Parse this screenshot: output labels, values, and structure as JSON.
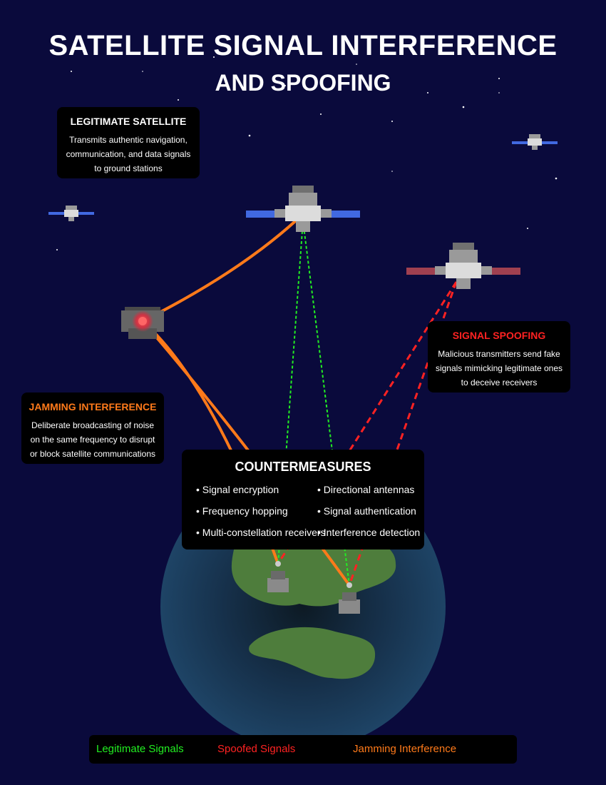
{
  "title": {
    "line1": "SATELLITE SIGNAL INTERFERENCE",
    "line2": "AND SPOOFING"
  },
  "boxes": {
    "legitimate": {
      "title": "LEGITIMATE SATELLITE",
      "lines": [
        "Transmits authentic navigation,",
        "communication, and data signals",
        "to ground stations"
      ]
    },
    "spoofing": {
      "title": "SIGNAL SPOOFING",
      "lines": [
        "Malicious transmitters send fake",
        "signals mimicking legitimate ones",
        "to deceive receivers"
      ]
    },
    "jamming": {
      "title": "JAMMING INTERFERENCE",
      "lines": [
        "Deliberate broadcasting of noise",
        "on the same frequency to disrupt",
        "or block satellite communications"
      ]
    }
  },
  "countermeasures": {
    "title": "COUNTERMEASURES",
    "items": [
      "• Signal encryption",
      "• Directional antennas",
      "• Frequency hopping",
      "• Signal authentication",
      "• Multi-constellation receivers",
      "• Interference detection"
    ]
  },
  "legend": {
    "legitimate": "Legitimate Signals",
    "spoofed": "Spoofed Signals",
    "jamming": "Jamming Interference"
  },
  "colors": {
    "background": "#0a0a3c",
    "legitimate": "#22ee22",
    "spoofed": "#ff2222",
    "jamming": "#ff7a1a",
    "earth": "#1a3a5c",
    "land": "#4e7d3c",
    "legit_panel": "#4169e1",
    "spoof_panel": "#a04050"
  },
  "icons": {
    "legitimate_satellite": "satellite-icon",
    "spoofing_satellite": "satellite-icon",
    "jammer": "jammer-icon",
    "ground_station": "ground-station-icon"
  }
}
